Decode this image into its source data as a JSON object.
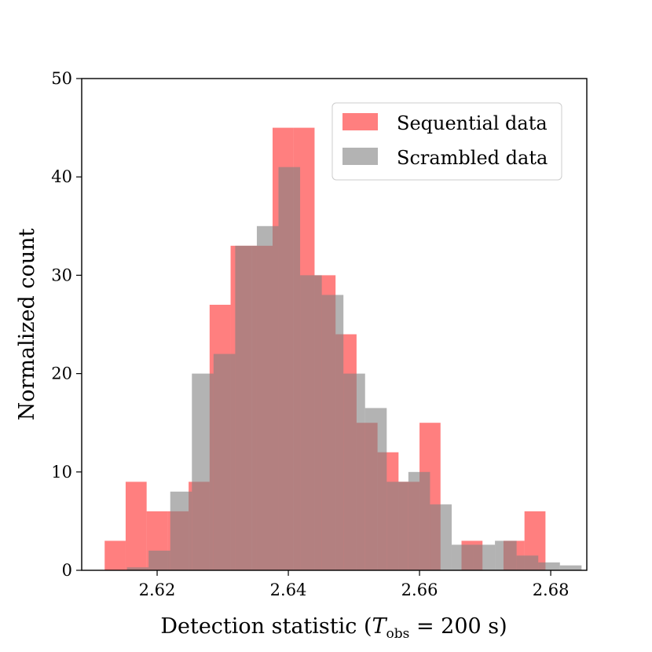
{
  "chart_data": {
    "type": "histogram",
    "xlabel_main": "Detection statistic (",
    "xlabel_var": "T",
    "xlabel_sub": "obs",
    "xlabel_rest": " = 200 s)",
    "ylabel": "Normalized count",
    "xlim": [
      2.6085,
      2.6855
    ],
    "ylim": [
      0,
      50
    ],
    "xticks": [
      2.62,
      2.64,
      2.66,
      2.68
    ],
    "xtick_labels": [
      "2.62",
      "2.64",
      "2.66",
      "2.68"
    ],
    "yticks": [
      0,
      10,
      20,
      30,
      40,
      50
    ],
    "ytick_labels": [
      "0",
      "10",
      "20",
      "30",
      "40",
      "50"
    ],
    "legend_position": "top-right",
    "series": [
      {
        "name": "Sequential data",
        "color": "#ff0000",
        "opacity": 0.5,
        "bin_edges": [
          2.612,
          2.6152,
          2.6184,
          2.6216,
          2.6248,
          2.628,
          2.6312,
          2.6344,
          2.6376,
          2.6408,
          2.644,
          2.6472,
          2.6504,
          2.6536,
          2.6568,
          2.66,
          2.6632,
          2.6664,
          2.6696,
          2.6728,
          2.676,
          2.6792
        ],
        "values": [
          3,
          9,
          6,
          6,
          9,
          27,
          33,
          33,
          45,
          45,
          30,
          24,
          15,
          12,
          9,
          15,
          0,
          3,
          0,
          3,
          6
        ]
      },
      {
        "name": "Scrambled data",
        "color": "#808080",
        "opacity": 0.6,
        "bin_edges": [
          2.6154,
          2.6187,
          2.622,
          2.6253,
          2.6286,
          2.6319,
          2.6352,
          2.6385,
          2.6418,
          2.6451,
          2.6484,
          2.6517,
          2.655,
          2.6583,
          2.6616,
          2.6649,
          2.6682,
          2.6715,
          2.6748,
          2.6781,
          2.6814,
          2.6847
        ],
        "values": [
          0.3,
          2,
          8,
          20,
          22,
          33,
          35,
          41,
          30,
          28,
          20,
          16.5,
          9,
          10,
          6.7,
          2.6,
          2.6,
          3,
          1.5,
          0.8,
          0.5
        ]
      }
    ]
  }
}
